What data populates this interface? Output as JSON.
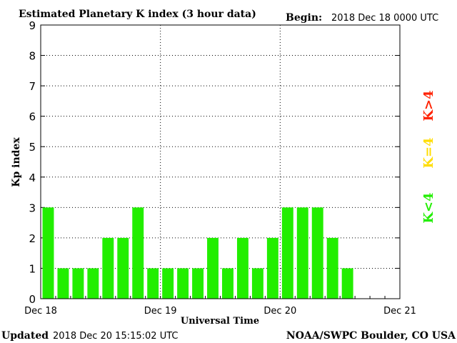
{
  "header": {
    "title": "Estimated Planetary K index (3 hour data)",
    "begin_label": "Begin:",
    "begin_value": "2018 Dec 18 0000 UTC"
  },
  "footer": {
    "updated_label": "Updated",
    "updated_value": "2018 Dec 20 15:15:02 UTC",
    "source": "NOAA/SWPC Boulder, CO USA"
  },
  "legend": [
    {
      "label": "K>4",
      "color": "#ff2200"
    },
    {
      "label": "K=4",
      "color": "#ffdd00"
    },
    {
      "label": "K<4",
      "color": "#22ee00"
    }
  ],
  "chart_data": {
    "type": "bar",
    "title": "Estimated Planetary K index (3 hour data)",
    "xlabel": "Universal Time",
    "ylabel": "Kp index",
    "ylim": [
      0,
      9
    ],
    "yticks": [
      0,
      1,
      2,
      3,
      4,
      5,
      6,
      7,
      8,
      9
    ],
    "xticks": [
      "Dec 18",
      "Dec 19",
      "Dec 20",
      "Dec 21"
    ],
    "x_slots": 24,
    "bar_color": "#22ee00",
    "grid": true,
    "values": [
      3,
      1,
      1,
      1,
      2,
      2,
      3,
      1,
      1,
      1,
      1,
      2,
      1,
      2,
      1,
      2,
      3,
      3,
      3,
      2,
      1
    ]
  }
}
